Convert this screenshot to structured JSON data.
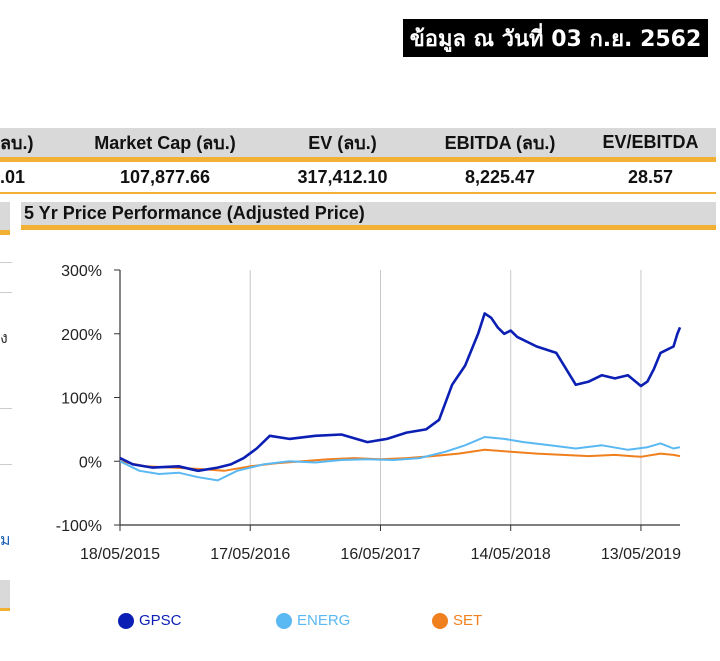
{
  "header": {
    "date_label": "ข้อมูล ณ วันที่ 03 ก.ย. 2562"
  },
  "metrics": {
    "headers": [
      "ลบ.)",
      "Market Cap (ลบ.)",
      "EV (ลบ.)",
      "EBITDA (ลบ.)",
      "EV/EBITDA"
    ],
    "values": [
      ".01",
      "107,877.66",
      "317,412.10",
      "8,225.47",
      "28.57"
    ]
  },
  "left_panel": {
    "fragments": [
      "ง",
      "ม"
    ]
  },
  "chart_panel": {
    "title": "5 Yr Price Performance (Adjusted Price)"
  },
  "chart_data": {
    "type": "line",
    "title": "5 Yr Price Performance (Adjusted Price)",
    "x_tick_labels": [
      "18/05/2015",
      "17/05/2016",
      "16/05/2017",
      "14/05/2018",
      "13/05/2019"
    ],
    "y_tick_labels": [
      "-100%",
      "0%",
      "100%",
      "200%",
      "300%"
    ],
    "ylim": [
      -100,
      300
    ],
    "x_unit": "years since 18/05/2015",
    "xlim": [
      0,
      4.3
    ],
    "grid": "vertical",
    "legend_position": "bottom",
    "series": [
      {
        "name": "GPSC",
        "color": "#0b1fb4",
        "x": [
          0,
          0.1,
          0.25,
          0.45,
          0.6,
          0.75,
          0.85,
          0.95,
          1.05,
          1.15,
          1.3,
          1.5,
          1.7,
          1.9,
          2.05,
          2.2,
          2.35,
          2.45,
          2.55,
          2.65,
          2.75,
          2.8,
          2.85,
          2.9,
          2.95,
          3.0,
          3.05,
          3.2,
          3.35,
          3.5,
          3.6,
          3.7,
          3.8,
          3.9,
          4.0,
          4.05,
          4.1,
          4.15,
          4.2,
          4.25,
          4.28,
          4.3
        ],
        "y": [
          5,
          -5,
          -10,
          -8,
          -15,
          -10,
          -5,
          5,
          20,
          40,
          35,
          40,
          42,
          30,
          35,
          45,
          50,
          65,
          120,
          150,
          200,
          232,
          225,
          210,
          200,
          205,
          195,
          180,
          170,
          120,
          125,
          135,
          130,
          135,
          118,
          125,
          145,
          170,
          175,
          180,
          200,
          210
        ]
      },
      {
        "name": "ENERG",
        "color": "#5ab8f2",
        "x": [
          0,
          0.15,
          0.3,
          0.45,
          0.6,
          0.75,
          0.9,
          1.1,
          1.3,
          1.5,
          1.7,
          1.9,
          2.1,
          2.3,
          2.5,
          2.65,
          2.8,
          2.95,
          3.1,
          3.3,
          3.5,
          3.7,
          3.9,
          4.05,
          4.15,
          4.25,
          4.3
        ],
        "y": [
          0,
          -15,
          -20,
          -18,
          -25,
          -30,
          -15,
          -5,
          0,
          -2,
          2,
          3,
          2,
          5,
          15,
          25,
          38,
          35,
          30,
          25,
          20,
          25,
          18,
          22,
          28,
          20,
          22
        ]
      },
      {
        "name": "SET",
        "color": "#f07f1e",
        "x": [
          0,
          0.2,
          0.4,
          0.6,
          0.8,
          1.0,
          1.2,
          1.4,
          1.6,
          1.8,
          2.0,
          2.2,
          2.4,
          2.6,
          2.8,
          3.0,
          3.2,
          3.4,
          3.6,
          3.8,
          4.0,
          4.15,
          4.25,
          4.3
        ],
        "y": [
          0,
          -8,
          -10,
          -12,
          -15,
          -8,
          -3,
          0,
          3,
          5,
          3,
          5,
          8,
          12,
          18,
          15,
          12,
          10,
          8,
          10,
          7,
          12,
          10,
          8
        ]
      }
    ]
  }
}
